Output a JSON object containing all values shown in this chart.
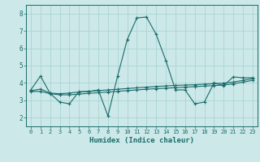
{
  "title": "",
  "xlabel": "Humidex (Indice chaleur)",
  "xlim": [
    -0.5,
    23.5
  ],
  "ylim": [
    1.5,
    8.5
  ],
  "xticks": [
    0,
    1,
    2,
    3,
    4,
    5,
    6,
    7,
    8,
    9,
    10,
    11,
    12,
    13,
    14,
    15,
    16,
    17,
    18,
    19,
    20,
    21,
    22,
    23
  ],
  "yticks": [
    2,
    3,
    4,
    5,
    6,
    7,
    8
  ],
  "bg_color": "#cce8e8",
  "line_color": "#1a6b6b",
  "grid_color": "#aad4d4",
  "series": [
    {
      "x": [
        0,
        1,
        2,
        3,
        4,
        5,
        6,
        7,
        8,
        9,
        10,
        11,
        12,
        13,
        14,
        15,
        16,
        17,
        18,
        19,
        20,
        21,
        22,
        23
      ],
      "y": [
        3.6,
        4.4,
        3.4,
        2.9,
        2.8,
        3.5,
        3.5,
        3.6,
        2.1,
        4.4,
        6.5,
        7.75,
        7.8,
        6.8,
        5.3,
        3.6,
        3.6,
        2.8,
        2.9,
        4.0,
        3.85,
        4.35,
        4.3,
        4.3
      ]
    },
    {
      "x": [
        0,
        1,
        2,
        3,
        4,
        5,
        6,
        7,
        8,
        9,
        10,
        11,
        12,
        13,
        14,
        15,
        16,
        17,
        18,
        19,
        20,
        21,
        22,
        23
      ],
      "y": [
        3.55,
        3.65,
        3.42,
        3.38,
        3.42,
        3.48,
        3.52,
        3.56,
        3.6,
        3.64,
        3.68,
        3.72,
        3.76,
        3.8,
        3.83,
        3.86,
        3.88,
        3.9,
        3.93,
        3.96,
        3.99,
        4.05,
        4.15,
        4.25
      ]
    },
    {
      "x": [
        0,
        1,
        2,
        3,
        4,
        5,
        6,
        7,
        8,
        9,
        10,
        11,
        12,
        13,
        14,
        15,
        16,
        17,
        18,
        19,
        20,
        21,
        22,
        23
      ],
      "y": [
        3.5,
        3.52,
        3.38,
        3.32,
        3.32,
        3.36,
        3.4,
        3.44,
        3.48,
        3.52,
        3.56,
        3.6,
        3.64,
        3.67,
        3.7,
        3.73,
        3.76,
        3.79,
        3.82,
        3.85,
        3.88,
        3.95,
        4.05,
        4.15
      ]
    }
  ]
}
